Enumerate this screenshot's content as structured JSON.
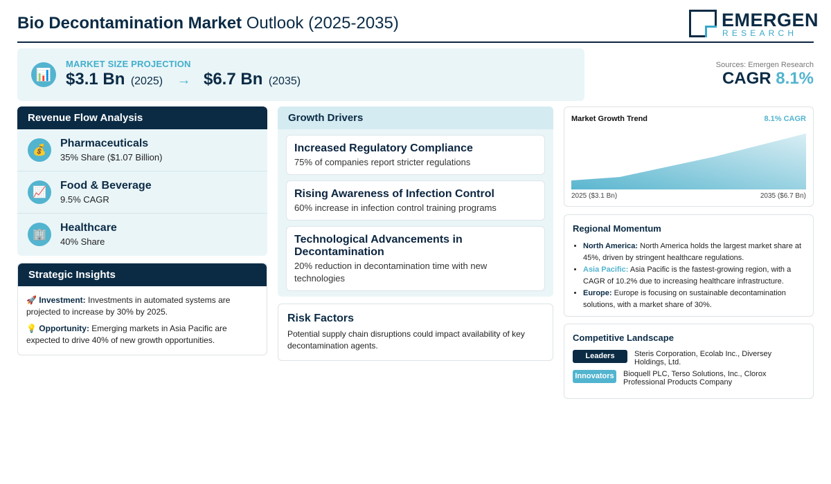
{
  "header": {
    "title_bold": "Bio Decontamination Market",
    "title_rest": "Outlook (2025-2035)",
    "logo_main": "EMERGEN",
    "logo_sub": "RESEARCH"
  },
  "market": {
    "icon": "bar-chart-icon",
    "label": "MARKET SIZE PROJECTION",
    "start_value": "$3.1 Bn",
    "start_year": "(2025)",
    "arrow": "→",
    "end_value": "$6.7 Bn",
    "end_year": "(2035)"
  },
  "sources": "Sources: Emergen Research",
  "cagr": {
    "label": "CAGR",
    "value": "8.1%"
  },
  "revenue": {
    "title": "Revenue Flow Analysis",
    "items": [
      {
        "icon": "money-bag-icon",
        "title": "Pharmaceuticals",
        "sub": "35% Share ($1.07 Billion)"
      },
      {
        "icon": "trend-up-icon",
        "title": "Food & Beverage",
        "sub": "9.5% CAGR"
      },
      {
        "icon": "building-icon",
        "title": "Healthcare",
        "sub": "40% Share"
      }
    ]
  },
  "strategic": {
    "title": "Strategic Insights",
    "items": [
      {
        "icon": "🚀",
        "label": "Investment:",
        "text": "Investments in automated systems are projected to increase by 30% by 2025."
      },
      {
        "icon": "💡",
        "label": "Opportunity:",
        "text": "Emerging markets in Asia Pacific are expected to drive 40% of new growth opportunities."
      }
    ]
  },
  "growth": {
    "title": "Growth Drivers",
    "drivers": [
      {
        "title": "Increased Regulatory Compliance",
        "desc": "75% of companies report stricter regulations"
      },
      {
        "title": "Rising Awareness of Infection Control",
        "desc": "60% increase in infection control training programs"
      },
      {
        "title": "Technological Advancements in Decontamination",
        "desc": "20% reduction in decontamination time with new technologies"
      }
    ]
  },
  "risk": {
    "title": "Risk Factors",
    "text": "Potential supply chain disruptions could impact availability of key decontamination agents."
  },
  "trend": {
    "title": "Market Growth Trend",
    "cagr": "8.1% CAGR",
    "left_label": "2025 ($3.1 Bn)",
    "right_label": "2035 ($6.7 Bn)",
    "colors": {
      "top": "#d9eef4",
      "bottom": "#5ab6cf"
    }
  },
  "regional": {
    "title": "Regional Momentum",
    "items": [
      {
        "region": "North America:",
        "text": "North America holds the largest market share at 45%, driven by stringent healthcare regulations."
      },
      {
        "region": "Asia Pacific:",
        "text": "Asia Pacific is the fastest-growing region, with a CAGR of 10.2% due to increasing healthcare infrastructure."
      },
      {
        "region": "Europe:",
        "text": "Europe is focusing on sustainable decontamination solutions, with a market share of 30%."
      }
    ]
  },
  "competitive": {
    "title": "Competitive Landscape",
    "rows": [
      {
        "badge": "Leaders",
        "text": "Steris Corporation, Ecolab Inc., Diversey Holdings, Ltd."
      },
      {
        "badge": "Innovators",
        "text": "Bioquell PLC, Terso Solutions, Inc., Clorox Professional Products Company"
      }
    ]
  },
  "colors": {
    "navy": "#0b2b45",
    "accent": "#52b4cf",
    "light_bg": "#eaf5f8"
  }
}
